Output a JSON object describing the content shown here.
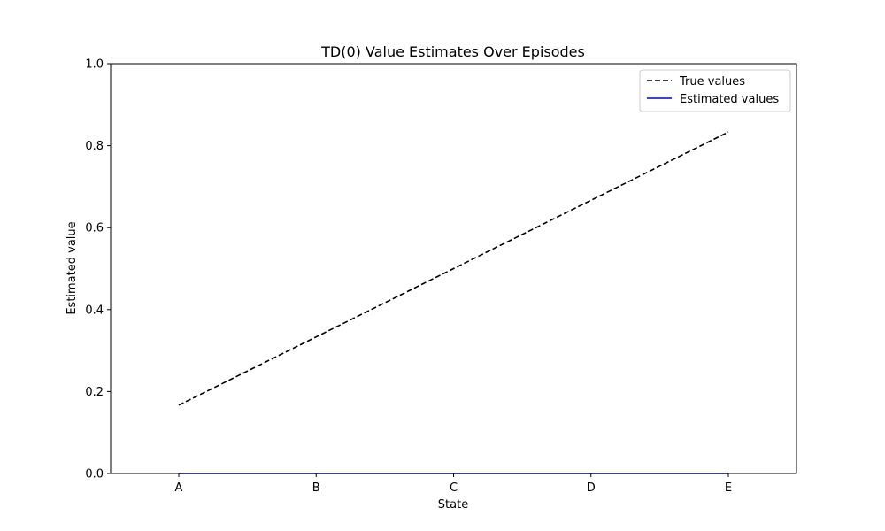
{
  "chart_data": {
    "type": "line",
    "title": "TD(0) Value Estimates Over Episodes",
    "xlabel": "State",
    "ylabel": "Estimated value",
    "categories": [
      "A",
      "B",
      "C",
      "D",
      "E"
    ],
    "ylim": [
      0,
      1
    ],
    "yticks": [
      "0.0",
      "0.2",
      "0.4",
      "0.6",
      "0.8",
      "1.0"
    ],
    "legend_position": "top-right",
    "series": [
      {
        "name": "True values",
        "values": [
          0.1667,
          0.3333,
          0.5,
          0.6667,
          0.8333
        ],
        "color": "#000000",
        "style": "dashed"
      },
      {
        "name": "Estimated values",
        "values": [
          0,
          0,
          0,
          0,
          0
        ],
        "color": "#0000cc",
        "style": "solid"
      }
    ]
  }
}
